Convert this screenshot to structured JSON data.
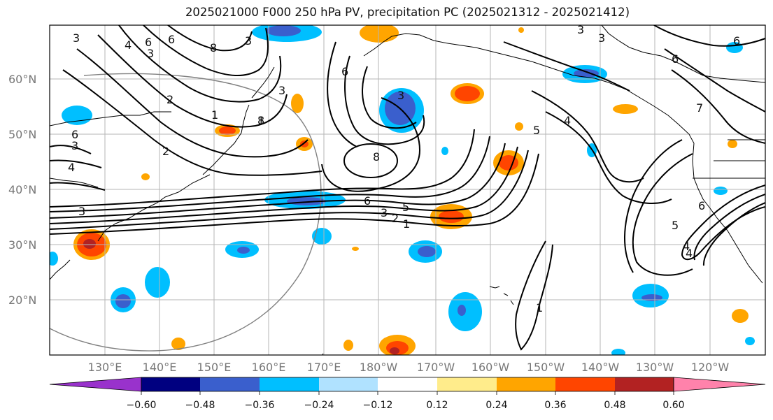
{
  "title": "2025021000 F000 250 hPa PV, precipitation PC (2025021312 - 2025021412)",
  "lat_labels": [
    "60°N",
    "50°N",
    "40°N",
    "30°N",
    "20°N"
  ],
  "lon_labels": [
    "130°E",
    "140°E",
    "150°E",
    "160°E",
    "170°E",
    "180°W",
    "170°W",
    "160°W",
    "150°W",
    "140°W",
    "130°W",
    "120°W"
  ],
  "colorbar": {
    "colors": [
      "#9932cc",
      "#000080",
      "#3a5fcd",
      "#00bfff",
      "#b0e2ff",
      "#ffffff",
      "#ffec8b",
      "#ffa500",
      "#ff4500",
      "#b22222",
      "#ff82ab"
    ],
    "ticks": [
      "−0.60",
      "−0.48",
      "−0.36",
      "−0.24",
      "−0.12",
      "0.12",
      "0.24",
      "0.36",
      "0.48",
      "0.60"
    ]
  },
  "pv_contour_labels": [
    "3",
    "4",
    "6",
    "6",
    "3",
    "8",
    "3",
    "3",
    "2",
    "1",
    "6",
    "3",
    "4",
    "2",
    "3",
    "1",
    "3",
    "8",
    "6",
    "3",
    "2",
    "1",
    "5",
    "4",
    "3",
    "7",
    "6",
    "6",
    "5",
    "6",
    "3",
    "8",
    "5",
    "4",
    "6",
    "4",
    "1"
  ]
}
